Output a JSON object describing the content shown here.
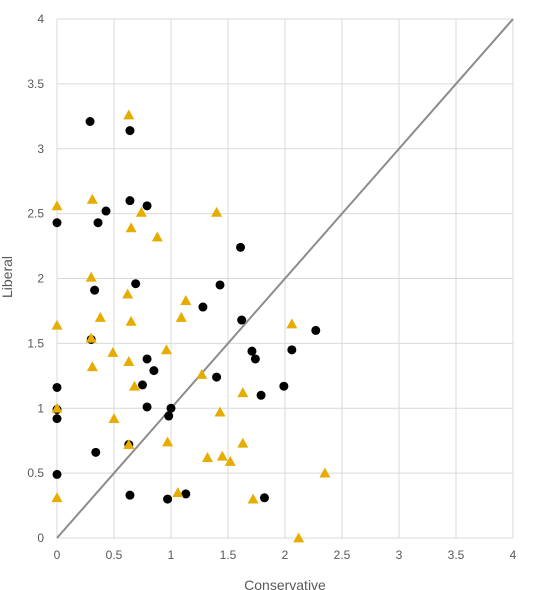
{
  "chart_data": {
    "type": "scatter",
    "xlabel": "Conservative",
    "ylabel": "Liberal",
    "xlim": [
      0,
      4
    ],
    "ylim": [
      0,
      4
    ],
    "x_ticks": [
      "0",
      "0.5",
      "1",
      "1.5",
      "2",
      "2.5",
      "3",
      "3.5",
      "4"
    ],
    "y_ticks": [
      "0",
      "0.5",
      "1",
      "1.5",
      "2",
      "2.5",
      "3",
      "3.5",
      "4"
    ],
    "grid": true,
    "reference_line": {
      "from": [
        0,
        0
      ],
      "to": [
        4,
        4
      ]
    },
    "series": [
      {
        "marker": "circle",
        "color": "#000000",
        "points": [
          [
            0.29,
            3.21
          ],
          [
            0.64,
            3.14
          ],
          [
            0.64,
            2.6
          ],
          [
            0.79,
            2.56
          ],
          [
            0.43,
            2.52
          ],
          [
            0.36,
            2.43
          ],
          [
            0.0,
            2.43
          ],
          [
            1.61,
            2.24
          ],
          [
            0.69,
            1.96
          ],
          [
            1.43,
            1.95
          ],
          [
            0.33,
            1.91
          ],
          [
            1.28,
            1.78
          ],
          [
            1.62,
            1.68
          ],
          [
            2.27,
            1.6
          ],
          [
            0.3,
            1.53
          ],
          [
            1.71,
            1.44
          ],
          [
            2.06,
            1.45
          ],
          [
            1.74,
            1.38
          ],
          [
            0.79,
            1.38
          ],
          [
            0.85,
            1.29
          ],
          [
            1.4,
            1.24
          ],
          [
            0.75,
            1.18
          ],
          [
            0.0,
            1.16
          ],
          [
            1.99,
            1.17
          ],
          [
            1.79,
            1.1
          ],
          [
            0.79,
            1.01
          ],
          [
            1.0,
            1.0
          ],
          [
            0.0,
            0.99
          ],
          [
            0.98,
            0.94
          ],
          [
            0.0,
            0.92
          ],
          [
            0.63,
            0.72
          ],
          [
            0.34,
            0.66
          ],
          [
            0.0,
            0.49
          ],
          [
            1.13,
            0.34
          ],
          [
            0.64,
            0.33
          ],
          [
            0.97,
            0.3
          ],
          [
            1.82,
            0.31
          ]
        ]
      },
      {
        "marker": "triangle",
        "color": "#E6AC00",
        "points": [
          [
            0.63,
            3.26
          ],
          [
            0.31,
            2.61
          ],
          [
            0.0,
            2.56
          ],
          [
            0.74,
            2.51
          ],
          [
            1.4,
            2.51
          ],
          [
            0.65,
            2.39
          ],
          [
            0.88,
            2.32
          ],
          [
            0.3,
            2.01
          ],
          [
            0.62,
            1.88
          ],
          [
            1.13,
            1.83
          ],
          [
            0.38,
            1.7
          ],
          [
            1.09,
            1.7
          ],
          [
            0.65,
            1.67
          ],
          [
            2.06,
            1.65
          ],
          [
            0.0,
            1.64
          ],
          [
            0.3,
            1.54
          ],
          [
            0.96,
            1.45
          ],
          [
            0.49,
            1.43
          ],
          [
            0.63,
            1.36
          ],
          [
            0.31,
            1.32
          ],
          [
            1.27,
            1.26
          ],
          [
            0.68,
            1.17
          ],
          [
            1.63,
            1.12
          ],
          [
            0.0,
            1.0
          ],
          [
            1.43,
            0.97
          ],
          [
            0.5,
            0.92
          ],
          [
            0.97,
            0.74
          ],
          [
            1.63,
            0.73
          ],
          [
            0.63,
            0.72
          ],
          [
            1.32,
            0.62
          ],
          [
            1.45,
            0.63
          ],
          [
            1.52,
            0.59
          ],
          [
            2.35,
            0.5
          ],
          [
            1.06,
            0.35
          ],
          [
            1.72,
            0.3
          ],
          [
            0.0,
            0.31
          ],
          [
            2.12,
            0.0
          ]
        ]
      }
    ]
  }
}
